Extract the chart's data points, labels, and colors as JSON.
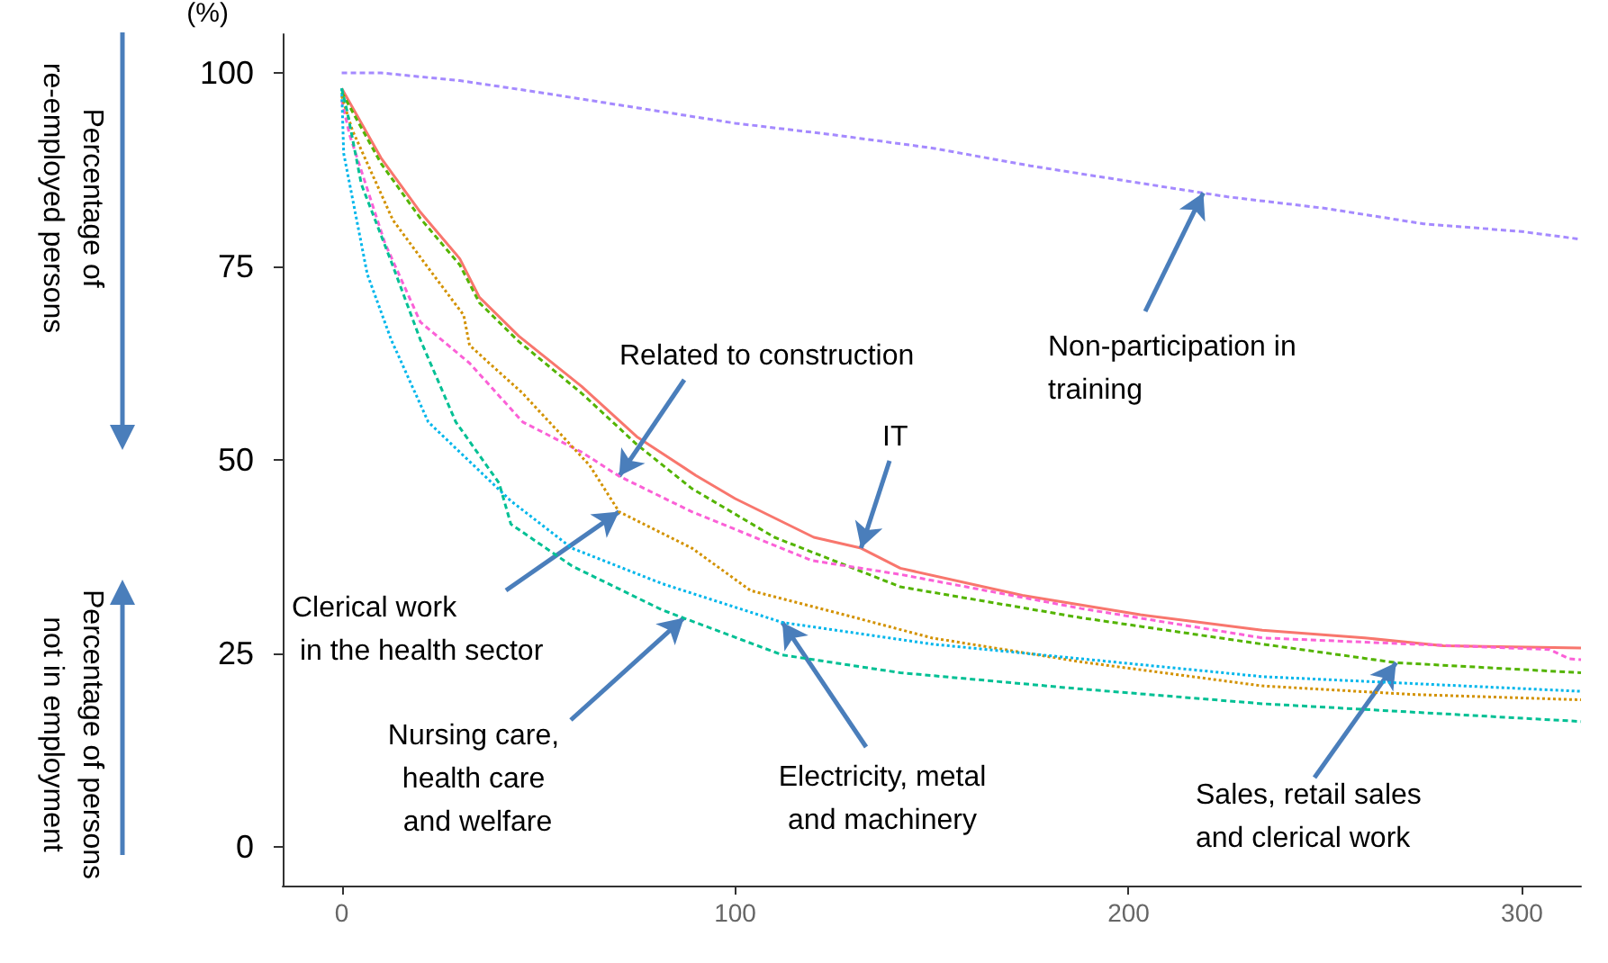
{
  "chart_data": {
    "type": "line",
    "ylabel": "(%)",
    "xlim": [
      -15,
      315
    ],
    "ylim": [
      -5,
      105
    ],
    "xticks": [
      0,
      100,
      200,
      300
    ],
    "yticks": [
      0,
      25,
      50,
      75,
      100
    ],
    "grid": false,
    "marker": "none",
    "series": [
      {
        "color": "#a58aff",
        "line_style": "dashed",
        "x": [
          0,
          10,
          30,
          50,
          75,
          100,
          125,
          150,
          175,
          200,
          225,
          250,
          275,
          300,
          315
        ],
        "values": [
          100,
          100,
          99,
          97.5,
          95.5,
          93.5,
          92,
          90.3,
          88,
          86,
          84,
          82.5,
          80.5,
          79.5,
          78.5
        ]
      },
      {
        "color": "#f8766d",
        "line_style": "solid",
        "x": [
          0,
          10,
          20,
          30,
          35,
          45,
          61,
          75,
          90,
          100,
          120,
          132,
          142,
          173,
          203,
          234,
          260,
          280,
          315
        ],
        "values": [
          98,
          89,
          82,
          76,
          71,
          66,
          59.5,
          53,
          48,
          45,
          40,
          38.6,
          36,
          32.5,
          30,
          28,
          27,
          26,
          25.7
        ]
      },
      {
        "color": "#53b400",
        "line_style": "dashed",
        "x": [
          0,
          10,
          20,
          30,
          35,
          45,
          61,
          75,
          89,
          110,
          130,
          142,
          188,
          234,
          268,
          315
        ],
        "values": [
          97.5,
          88.3,
          81.2,
          75.2,
          70.3,
          65.3,
          58.6,
          52,
          46.3,
          40,
          36,
          33.6,
          29.6,
          26.2,
          23.8,
          22.5
        ]
      },
      {
        "color": "#fb61d7",
        "line_style": "dashed",
        "x": [
          0,
          2,
          11,
          20,
          32.5,
          46,
          61,
          70.5,
          89,
          119.5,
          142,
          188,
          234,
          272,
          307,
          312,
          315
        ],
        "values": [
          96.5,
          92,
          78,
          67.8,
          62.5,
          54.9,
          51,
          47.9,
          43.3,
          37,
          35.2,
          30.8,
          27,
          26.2,
          25.5,
          24.3,
          24.2
        ]
      },
      {
        "color": "#d39200",
        "line_style": "dotted",
        "x": [
          0,
          2.7,
          13,
          22,
          31,
          32.5,
          46,
          63,
          70.5,
          89,
          104,
          127,
          150,
          188,
          234,
          272,
          315
        ],
        "values": [
          97,
          92.6,
          81,
          74.8,
          68.7,
          64.8,
          58.6,
          49.3,
          43.3,
          38.6,
          33.1,
          30.1,
          27,
          23.9,
          20.8,
          19.7,
          19
        ]
      },
      {
        "color": "#00b6eb",
        "line_style": "dotted",
        "x": [
          0,
          0.5,
          6.5,
          12.6,
          22,
          43,
          58.5,
          81.5,
          112,
          150,
          188,
          234,
          315
        ],
        "values": [
          98,
          89.6,
          74,
          65.5,
          54.9,
          44.7,
          38.6,
          34,
          29,
          26.2,
          24.3,
          22,
          20.1
        ]
      },
      {
        "color": "#00c094",
        "line_style": "dashed",
        "x": [
          0,
          1.4,
          5,
          12.6,
          20,
          29,
          40,
          43,
          58.5,
          81.5,
          112,
          142,
          188,
          234,
          315
        ],
        "values": [
          98,
          95,
          85.6,
          75.6,
          65.5,
          54.9,
          47,
          41.7,
          36.3,
          30.6,
          24.8,
          22.5,
          20.4,
          18.5,
          16.2
        ]
      }
    ],
    "annotations": [
      "Percentage of\nre-employed persons",
      "Percentage of persons\nnot in employment",
      {
        "text": "Non-participation in\ntraining",
        "x": 219,
        "y": 84.5
      },
      {
        "text": "Related to construction",
        "x": 70.5,
        "y": 47.9
      },
      {
        "text": "IT",
        "x": 132,
        "y": 38.6
      },
      {
        "text": "Clerical work\n in the health sector",
        "x": 70.5,
        "y": 43.3
      },
      {
        "text": "Nursing care,\nhealth care\n and welfare",
        "x": 87,
        "y": 29.6
      },
      {
        "text": "Electricity, metal\nand machinery",
        "x": 112,
        "y": 29
      },
      {
        "text": "Sales, retail sales\nand clerical work",
        "x": 268,
        "y": 23.8
      }
    ]
  }
}
